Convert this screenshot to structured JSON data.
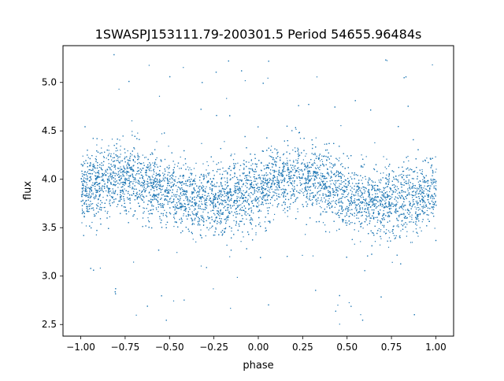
{
  "chart_data": {
    "type": "scatter",
    "title": "1SWASPJ153111.79-200301.5 Period 54655.96484s",
    "xlabel": "phase",
    "ylabel": "flux",
    "xlim": [
      -1.1,
      1.1
    ],
    "ylim": [
      2.38,
      5.38
    ],
    "x_ticks": [
      -1.0,
      -0.75,
      -0.5,
      -0.25,
      0.0,
      0.25,
      0.5,
      0.75,
      1.0
    ],
    "x_tick_labels": [
      "−1.00",
      "−0.75",
      "−0.50",
      "−0.25",
      "0.00",
      "0.25",
      "0.50",
      "0.75",
      "1.00"
    ],
    "y_ticks": [
      2.5,
      3.0,
      3.5,
      4.0,
      4.5,
      5.0
    ],
    "y_tick_labels": [
      "2.5",
      "3.0",
      "3.5",
      "4.0",
      "4.5",
      "5.0"
    ],
    "grid": false,
    "legend": "none",
    "marker_color": "#1f77b4",
    "series": [
      {
        "phase_range": [
          -1.0,
          1.0
        ],
        "trend": {
          "phase": [
            -1.0,
            -0.9,
            -0.8,
            -0.75,
            -0.7,
            -0.6,
            -0.5,
            -0.4,
            -0.3,
            -0.2,
            -0.1,
            0.0,
            0.1,
            0.2,
            0.25,
            0.3,
            0.4,
            0.5,
            0.6,
            0.7,
            0.8,
            0.9,
            1.0
          ],
          "flux": [
            3.88,
            3.95,
            4.02,
            4.04,
            4.02,
            3.95,
            3.85,
            3.8,
            3.78,
            3.79,
            3.84,
            3.9,
            3.98,
            4.03,
            4.04,
            4.02,
            3.93,
            3.84,
            3.78,
            3.77,
            3.78,
            3.82,
            3.88
          ]
        },
        "typical_scatter": 0.18,
        "flux_extent": [
          2.5,
          5.3
        ]
      }
    ]
  }
}
